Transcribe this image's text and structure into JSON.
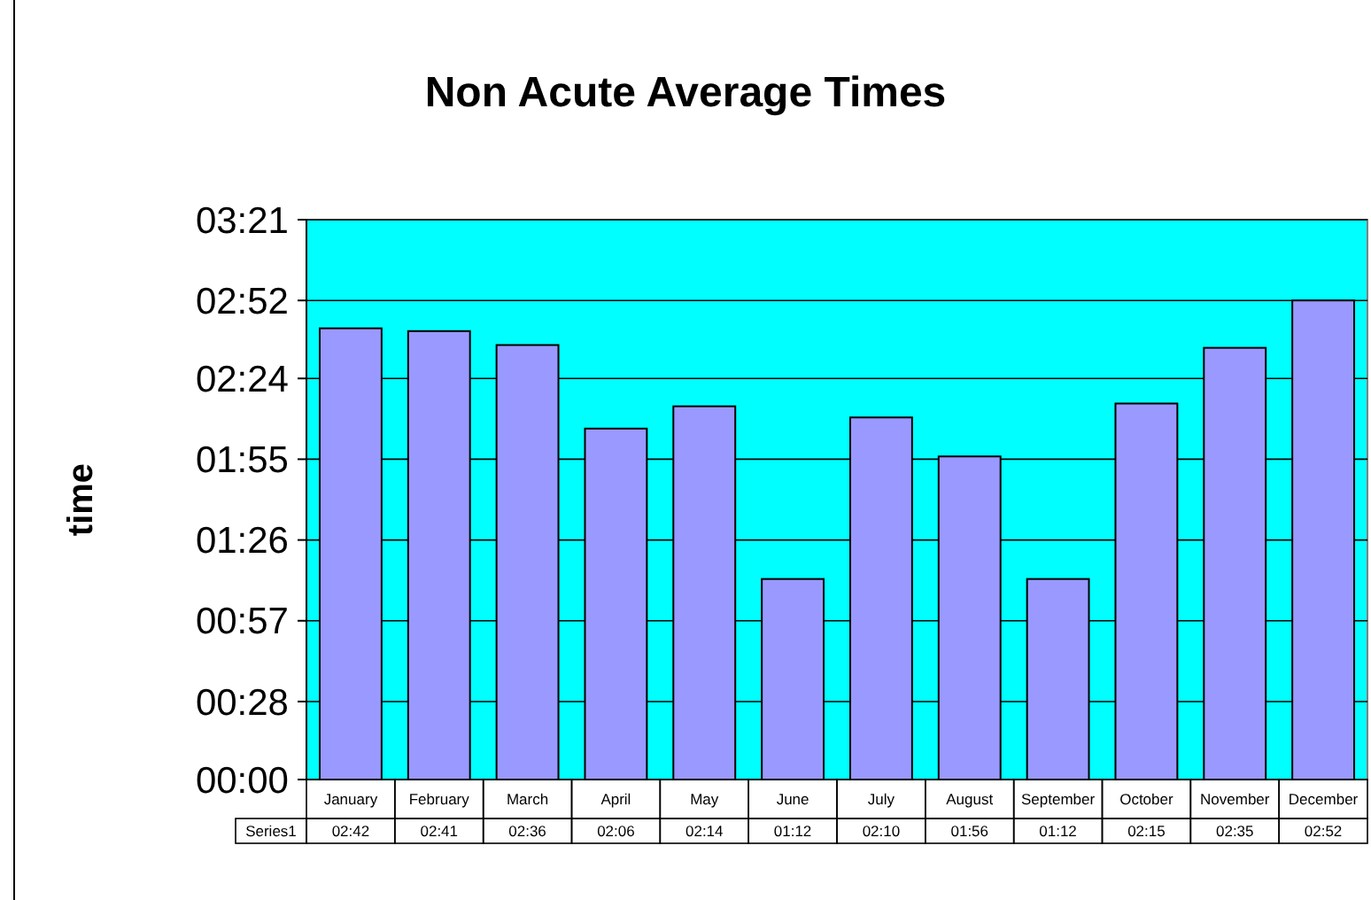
{
  "chart_data": {
    "type": "bar",
    "title": "Non Acute Average Times",
    "ylabel": "time",
    "categories": [
      "January",
      "February",
      "March",
      "April",
      "May",
      "June",
      "July",
      "August",
      "September",
      "October",
      "November",
      "December"
    ],
    "series": [
      {
        "name": "Series1",
        "color": "#9999ff",
        "values": [
          162,
          161,
          156,
          126,
          134,
          72,
          130,
          116,
          72,
          135,
          155,
          172
        ],
        "value_labels": [
          "02:42",
          "02:41",
          "02:36",
          "02:06",
          "02:14",
          "01:12",
          "02:10",
          "01:56",
          "01:12",
          "02:15",
          "02:35",
          "02:52"
        ]
      }
    ],
    "ylim": [
      0,
      201
    ],
    "yticks": [
      {
        "value": 0,
        "label": "00:00"
      },
      {
        "value": 28,
        "label": "00:28"
      },
      {
        "value": 57,
        "label": "00:57"
      },
      {
        "value": 86,
        "label": "01:26"
      },
      {
        "value": 115,
        "label": "01:55"
      },
      {
        "value": 144,
        "label": "02:24"
      },
      {
        "value": 172,
        "label": "02:52"
      },
      {
        "value": 201,
        "label": "03:21"
      }
    ],
    "grid": "y",
    "legend": false
  }
}
